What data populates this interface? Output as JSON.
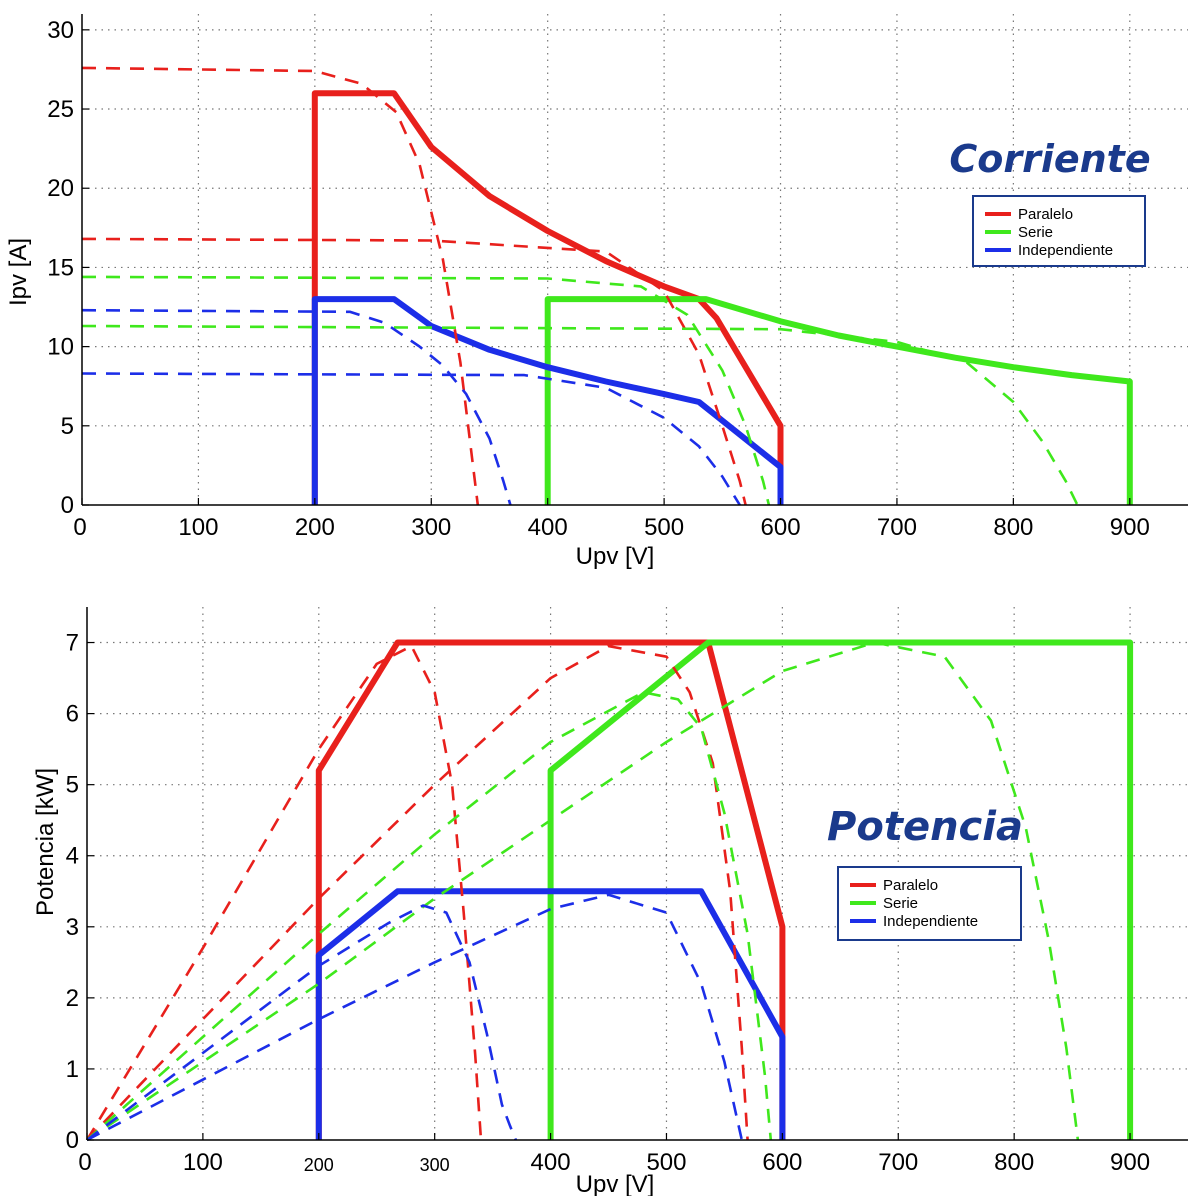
{
  "chart_data": [
    {
      "type": "line",
      "title": "Corriente",
      "xlabel": "Upv [V]",
      "ylabel": "Ipv [A]",
      "xlim": [
        0,
        950
      ],
      "ylim": [
        0,
        31
      ],
      "xticks": [
        0,
        100,
        200,
        300,
        400,
        500,
        600,
        700,
        800,
        900
      ],
      "yticks": [
        0,
        5,
        10,
        15,
        20,
        25,
        30
      ],
      "grid": true,
      "legend": {
        "placement": "right",
        "entries": [
          "Paralelo",
          "Serie",
          "Independiente"
        ]
      },
      "colors": {
        "Paralelo": "#e8201c",
        "Serie": "#3fe81c",
        "Independiente": "#1c2ee8"
      },
      "series": [
        {
          "name": "Paralelo",
          "style": "solid",
          "color": "#e8201c",
          "x": [
            200,
            200,
            268,
            300,
            350,
            400,
            450,
            500,
            530,
            545,
            600,
            600
          ],
          "y": [
            0,
            26,
            26,
            22.6,
            19.5,
            17.3,
            15.4,
            13.8,
            13.0,
            11.8,
            5,
            0
          ]
        },
        {
          "name": "Serie",
          "style": "solid",
          "color": "#3fe81c",
          "x": [
            400,
            400,
            536,
            600,
            650,
            700,
            750,
            800,
            850,
            900,
            900
          ],
          "y": [
            0,
            13,
            13,
            11.6,
            10.7,
            10.0,
            9.3,
            8.7,
            8.2,
            7.8,
            0
          ]
        },
        {
          "name": "Independiente",
          "style": "solid",
          "color": "#1c2ee8",
          "x": [
            200,
            200,
            268,
            300,
            350,
            400,
            450,
            500,
            530,
            600,
            600
          ],
          "y": [
            0,
            13,
            13,
            11.3,
            9.8,
            8.7,
            7.8,
            7.0,
            6.5,
            2.4,
            0
          ]
        },
        {
          "name": "Paralelo",
          "style": "dashed",
          "color": "#e8201c",
          "x": [
            0,
            200,
            240,
            270,
            290,
            310,
            325,
            335,
            340
          ],
          "y": [
            27.6,
            27.4,
            26.6,
            24.8,
            21.5,
            15.5,
            9.0,
            3.0,
            0
          ]
        },
        {
          "name": "Paralelo",
          "style": "dashed",
          "color": "#e8201c",
          "x": [
            0,
            300,
            450,
            500,
            530,
            550,
            565,
            570
          ],
          "y": [
            16.8,
            16.7,
            16.0,
            13.5,
            9.5,
            5.0,
            1.5,
            0
          ]
        },
        {
          "name": "Serie",
          "style": "dashed",
          "color": "#3fe81c",
          "x": [
            0,
            400,
            480,
            520,
            550,
            570,
            585,
            590
          ],
          "y": [
            14.4,
            14.3,
            13.8,
            12.0,
            8.5,
            5.0,
            1.5,
            0
          ]
        },
        {
          "name": "Serie",
          "style": "dashed",
          "color": "#3fe81c",
          "x": [
            0,
            600,
            700,
            760,
            800,
            825,
            845,
            855
          ],
          "y": [
            11.3,
            11.1,
            10.3,
            9.0,
            6.5,
            4.0,
            1.5,
            0
          ]
        },
        {
          "name": "Independiente",
          "style": "dashed",
          "color": "#1c2ee8",
          "x": [
            0,
            230,
            260,
            290,
            310,
            330,
            350,
            362,
            368
          ],
          "y": [
            12.3,
            12.2,
            11.5,
            10.0,
            8.8,
            7.0,
            4.2,
            1.5,
            0
          ]
        },
        {
          "name": "Independiente",
          "style": "dashed",
          "color": "#1c2ee8",
          "x": [
            0,
            380,
            450,
            500,
            530,
            550,
            565
          ],
          "y": [
            8.3,
            8.2,
            7.4,
            5.5,
            3.7,
            1.8,
            0
          ]
        }
      ]
    },
    {
      "type": "line",
      "title": "Potencia",
      "xlabel": "Upv [V]",
      "ylabel": "Potencia [kW]",
      "xlim": [
        0,
        950
      ],
      "ylim": [
        0,
        7.5
      ],
      "xticks": [
        0,
        100,
        200,
        300,
        400,
        500,
        600,
        700,
        800,
        900
      ],
      "yticks": [
        0,
        1,
        2,
        3,
        4,
        5,
        6,
        7
      ],
      "grid": true,
      "legend": {
        "placement": "center-right",
        "entries": [
          "Paralelo",
          "Serie",
          "Independiente"
        ]
      },
      "colors": {
        "Paralelo": "#e8201c",
        "Serie": "#3fe81c",
        "Independiente": "#1c2ee8"
      },
      "series": [
        {
          "name": "Paralelo",
          "style": "solid",
          "color": "#e8201c",
          "x": [
            200,
            200,
            268,
            536,
            600,
            600
          ],
          "y": [
            0,
            5.2,
            7,
            7,
            3.0,
            0
          ]
        },
        {
          "name": "Serie",
          "style": "solid",
          "color": "#3fe81c",
          "x": [
            400,
            400,
            536,
            900,
            900
          ],
          "y": [
            0,
            5.2,
            7,
            7,
            0
          ]
        },
        {
          "name": "Independiente",
          "style": "solid",
          "color": "#1c2ee8",
          "x": [
            200,
            200,
            268,
            530,
            600,
            600
          ],
          "y": [
            0,
            2.6,
            3.5,
            3.5,
            1.45,
            0
          ]
        },
        {
          "name": "Paralelo",
          "style": "dashed",
          "color": "#e8201c",
          "x": [
            0,
            100,
            200,
            250,
            280,
            300,
            315,
            325,
            335,
            340
          ],
          "y": [
            0,
            2.7,
            5.5,
            6.7,
            6.95,
            6.3,
            5.0,
            3.2,
            1.2,
            0
          ]
        },
        {
          "name": "Paralelo",
          "style": "dashed",
          "color": "#e8201c",
          "x": [
            0,
            200,
            300,
            400,
            450,
            500,
            520,
            540,
            555,
            565,
            570
          ],
          "y": [
            0,
            3.4,
            5.0,
            6.5,
            6.95,
            6.8,
            6.3,
            5.3,
            3.5,
            1.3,
            0
          ]
        },
        {
          "name": "Serie",
          "style": "dashed",
          "color": "#3fe81c",
          "x": [
            0,
            200,
            300,
            400,
            480,
            510,
            530,
            550,
            570,
            585,
            590
          ],
          "y": [
            0,
            2.9,
            4.3,
            5.6,
            6.3,
            6.2,
            5.8,
            4.6,
            2.9,
            0.9,
            0
          ]
        },
        {
          "name": "Serie",
          "style": "dashed",
          "color": "#3fe81c",
          "x": [
            0,
            200,
            300,
            400,
            500,
            600,
            680,
            740,
            780,
            810,
            830,
            845,
            855
          ],
          "y": [
            0,
            2.2,
            3.4,
            4.5,
            5.6,
            6.6,
            7.0,
            6.8,
            5.9,
            4.4,
            2.8,
            1.3,
            0
          ]
        },
        {
          "name": "Independiente",
          "style": "dashed",
          "color": "#1c2ee8",
          "x": [
            0,
            200,
            260,
            290,
            310,
            330,
            345,
            358,
            365,
            370
          ],
          "y": [
            0,
            2.45,
            3.05,
            3.3,
            3.2,
            2.5,
            1.5,
            0.5,
            0.2,
            0
          ]
        },
        {
          "name": "Independiente",
          "style": "dashed",
          "color": "#1c2ee8",
          "x": [
            0,
            200,
            300,
            400,
            450,
            500,
            530,
            550,
            565
          ],
          "y": [
            0,
            1.7,
            2.5,
            3.25,
            3.45,
            3.2,
            2.2,
            1.1,
            0
          ]
        }
      ]
    }
  ]
}
